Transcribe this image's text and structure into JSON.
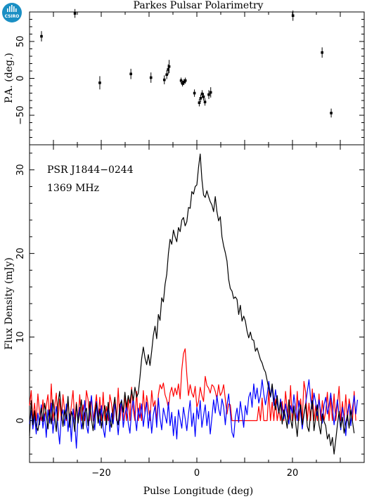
{
  "title": "Parkes Pulsar Polarimetry",
  "logo": {
    "text": "CSIRO",
    "color": "#1a8fc4"
  },
  "annotations": {
    "pulsar": "PSR J1844−0244",
    "frequency": "1369 MHz"
  },
  "colors": {
    "total": "#000000",
    "linear": "#ff0000",
    "circular": "#0000ff"
  },
  "chart_data": [
    {
      "type": "scatter",
      "ylabel": "P.A. (deg.)",
      "xlim": [
        -35,
        35
      ],
      "ylim": [
        -90,
        90
      ],
      "yticks": [
        -50,
        0,
        50
      ],
      "xticks": [
        -20,
        0,
        20
      ],
      "points": [
        {
          "x": -32.5,
          "y": 57,
          "err": 7
        },
        {
          "x": -25.5,
          "y": 88,
          "err": 6
        },
        {
          "x": -20.3,
          "y": -6,
          "err": 9
        },
        {
          "x": -13.8,
          "y": 6,
          "err": 7
        },
        {
          "x": -9.6,
          "y": 1,
          "err": 7
        },
        {
          "x": -6.8,
          "y": -2,
          "err": 6
        },
        {
          "x": -6.3,
          "y": 5,
          "err": 6
        },
        {
          "x": -6.0,
          "y": 12,
          "err": 7
        },
        {
          "x": -5.8,
          "y": 16,
          "err": 9
        },
        {
          "x": -3.3,
          "y": -3,
          "err": 4
        },
        {
          "x": -3.0,
          "y": -7,
          "err": 4
        },
        {
          "x": -2.7,
          "y": -5,
          "err": 4
        },
        {
          "x": -2.4,
          "y": -3,
          "err": 4
        },
        {
          "x": -0.5,
          "y": -20,
          "err": 5
        },
        {
          "x": 0.5,
          "y": -33,
          "err": 5
        },
        {
          "x": 0.8,
          "y": -27,
          "err": 5
        },
        {
          "x": 1.1,
          "y": -21,
          "err": 5
        },
        {
          "x": 1.4,
          "y": -25,
          "err": 5
        },
        {
          "x": 1.7,
          "y": -32,
          "err": 5
        },
        {
          "x": 2.5,
          "y": -22,
          "err": 6
        },
        {
          "x": 2.9,
          "y": -19,
          "err": 7
        },
        {
          "x": 20.1,
          "y": 85,
          "err": 7
        },
        {
          "x": 26.2,
          "y": 35,
          "err": 7
        },
        {
          "x": 28.1,
          "y": -47,
          "err": 6
        }
      ]
    },
    {
      "type": "line",
      "xlabel": "Pulse Longitude (deg)",
      "ylabel": "Flux Density (mJy)",
      "xlim": [
        -35,
        35
      ],
      "ylim": [
        -5,
        33
      ],
      "yticks": [
        0,
        10,
        20,
        30
      ],
      "xticks": [
        -20,
        0,
        20
      ],
      "x_start": -35,
      "x_step": 0.35,
      "series": [
        {
          "color": "#000000",
          "values": [
            -1.8,
            2.4,
            -0.5,
            1.2,
            -0.6,
            -1.2,
            0.1,
            1.5,
            -0.1,
            2.1,
            0.8,
            -1.0,
            1.3,
            -0.4,
            2.5,
            0.6,
            -1.3,
            2.0,
            3.5,
            1.1,
            -0.7,
            1.3,
            0.2,
            2.9,
            -0.8,
            1.1,
            0.4,
            -1.3,
            2.0,
            -0.3,
            1.0,
            2.5,
            -1.0,
            0.9,
            1.5,
            -0.6,
            2.3,
            0.2,
            -1.2,
            0.8,
            2.1,
            -0.3,
            1.4,
            -0.9,
            0.7,
            1.8,
            -0.5,
            2.2,
            0.1,
            -0.8,
            1.5,
            2.8,
            0.4,
            -0.5,
            1.9,
            2.4,
            1.0,
            3.4,
            1.6,
            3.0,
            2.1,
            3.7,
            2.4,
            4.0,
            2.8,
            3.3,
            5.2,
            7.4,
            8.8,
            7.5,
            6.7,
            7.9,
            6.6,
            8.3,
            10.2,
            11.3,
            9.8,
            12.7,
            12.0,
            14.7,
            14.2,
            16.3,
            17.5,
            20.0,
            21.7,
            21.1,
            22.8,
            22.0,
            21.4,
            23.1,
            22.6,
            24.0,
            24.3,
            23.3,
            23.8,
            25.5,
            25.4,
            27.4,
            27.1,
            28.0,
            28.2,
            30.3,
            31.9,
            28.9,
            27.0,
            26.7,
            27.5,
            26.8,
            26.2,
            25.8,
            25.0,
            26.8,
            25.0,
            23.9,
            24.4,
            22.0,
            20.9,
            20.1,
            19.1,
            16.9,
            15.8,
            15.5,
            14.6,
            14.8,
            14.5,
            12.7,
            13.8,
            11.9,
            12.5,
            11.9,
            10.7,
            9.9,
            10.6,
            9.7,
            9.6,
            8.3,
            8.7,
            8.0,
            7.3,
            6.9,
            6.2,
            5.8,
            4.8,
            3.8,
            2.9,
            4.4,
            2.5,
            1.3,
            3.0,
            0.9,
            2.2,
            -0.4,
            1.3,
            0.4,
            -0.9,
            2.5,
            0.2,
            -0.9,
            1.7,
            -0.2,
            -1.9,
            0.8,
            1.9,
            -0.5,
            0.8,
            2.0,
            -0.7,
            -1.3,
            1.0,
            2.4,
            -1.2,
            0.4,
            1.9,
            -0.5,
            -1.6,
            0.8,
            -0.1,
            -0.6,
            -2.2,
            -1.6,
            -3.0,
            -2.0,
            -4.0,
            -2.3,
            -0.5,
            1.1,
            -0.8,
            0.4,
            -1.5,
            -0.2,
            0.7,
            -0.9,
            1.3,
            -0.1,
            -1.5
          ]
        },
        {
          "color": "#ff0000",
          "values": [
            1.8,
            3.6,
            0.0,
            2.1,
            0.0,
            3.2,
            0.9,
            0.0,
            2.5,
            0.0,
            1.8,
            3.1,
            0.0,
            4.4,
            0.0,
            1.7,
            3.3,
            0.0,
            2.6,
            0.0,
            3.1,
            1.2,
            0.0,
            2.5,
            0.0,
            1.8,
            3.6,
            0.0,
            2.2,
            0.0,
            3.1,
            0.0,
            1.9,
            0.0,
            3.6,
            2.5,
            0.0,
            2.9,
            0.0,
            1.4,
            3.1,
            0.0,
            2.8,
            0.0,
            3.4,
            0.0,
            1.7,
            0.0,
            3.1,
            2.0,
            0.0,
            2.6,
            0.0,
            3.9,
            0.0,
            2.0,
            0.0,
            3.3,
            0.0,
            2.6,
            0.0,
            4.0,
            1.3,
            0.0,
            3.5,
            0.0,
            2.1,
            0.0,
            3.6,
            0.8,
            3.0,
            1.6,
            0.0,
            3.6,
            1.7,
            2.4,
            0.0,
            3.1,
            4.3,
            3.8,
            4.5,
            3.1,
            2.5,
            1.5,
            3.3,
            4.0,
            2.9,
            3.9,
            3.1,
            4.4,
            2.6,
            6.1,
            8.0,
            8.6,
            5.5,
            3.0,
            4.3,
            3.3,
            2.8,
            4.1,
            1.6,
            2.3,
            4.0,
            3.0,
            2.3,
            5.3,
            4.2,
            3.9,
            3.3,
            4.3,
            4.1,
            3.5,
            2.6,
            4.3,
            3.0,
            3.4,
            4.3,
            2.6,
            0.8,
            2.0,
            1.9,
            0.0,
            0.0,
            0.0,
            0.0,
            0.0,
            0.0,
            0.0,
            0.0,
            0.0,
            0.0,
            0.0,
            0.0,
            0.0,
            0.0,
            0.0,
            0.0,
            1.7,
            0.0,
            2.7,
            0.0,
            0.0,
            0.0,
            3.6,
            0.0,
            2.2,
            0.0,
            2.6,
            0.0,
            1.3,
            0.0,
            2.3,
            0.0,
            3.5,
            1.4,
            0.0,
            4.2,
            0.0,
            1.8,
            0.0,
            3.5,
            0.0,
            2.6,
            0.0,
            4.7,
            3.4,
            0.0,
            2.1,
            0.0,
            3.8,
            0.0,
            1.8,
            0.0,
            3.2,
            0.0,
            2.4,
            0.0,
            1.1,
            3.4,
            0.0,
            2.7,
            0.0,
            3.2,
            0.0,
            1.8,
            4.1,
            0.0,
            2.3,
            0.0,
            3.1,
            0.0,
            2.6,
            1.4,
            0.0,
            3.5,
            0.0
          ]
        },
        {
          "color": "#0000ff",
          "values": [
            -0.4,
            1.2,
            -1.0,
            0.6,
            -1.6,
            0.9,
            -0.5,
            1.9,
            -0.9,
            0.8,
            -2.0,
            1.3,
            -0.3,
            2.1,
            -1.5,
            0.4,
            1.7,
            -0.8,
            -2.8,
            0.5,
            1.3,
            -0.6,
            2.0,
            -1.3,
            0.8,
            -2.5,
            1.4,
            -0.2,
            -3.3,
            0.6,
            1.6,
            -1.0,
            0.2,
            2.4,
            -0.5,
            -1.5,
            1.2,
            3.0,
            0.4,
            -1.1,
            2.3,
            1.0,
            -0.6,
            1.8,
            -0.9,
            -2.0,
            0.7,
            1.5,
            -1.3,
            0.9,
            -0.4,
            2.0,
            0.5,
            -1.7,
            1.0,
            2.5,
            -0.8,
            0.7,
            1.8,
            -0.3,
            -1.5,
            1.2,
            2.7,
            0.6,
            -1.2,
            1.5,
            0.3,
            2.0,
            -0.7,
            0.9,
            2.2,
            -0.9,
            1.2,
            -1.5,
            0.7,
            1.8,
            -0.8,
            2.7,
            0.3,
            -1.1,
            1.5,
            0.6,
            -0.3,
            2.2,
            -0.6,
            1.0,
            -1.8,
            0.5,
            -2.2,
            1.3,
            0.2,
            -0.9,
            1.6,
            0.3,
            -1.2,
            0.8,
            2.4,
            -0.7,
            0.9,
            -1.9,
            1.6,
            0.2,
            2.4,
            -0.8,
            0.6,
            1.9,
            -0.6,
            1.1,
            -1.6,
            0.4,
            2.5,
            0.9,
            3.0,
            1.4,
            0.6,
            2.6,
            1.7,
            -0.5,
            1.8,
            3.2,
            1.0,
            -1.4,
            -2.0,
            0.4,
            1.5,
            -0.2,
            2.3,
            0.8,
            -0.8,
            1.8,
            0.7,
            2.8,
            3.4,
            1.6,
            4.4,
            2.6,
            3.9,
            2.1,
            3.0,
            4.9,
            3.2,
            1.9,
            3.1,
            4.7,
            2.8,
            4.0,
            1.8,
            3.7,
            2.1,
            0.9,
            2.6,
            1.4,
            0.2,
            2.0,
            0.6,
            -0.4,
            1.8,
            0.9,
            3.1,
            1.5,
            0.0,
            2.4,
            1.0,
            -1.0,
            0.7,
            2.0,
            3.5,
            4.9,
            2.6,
            1.4,
            3.3,
            2.2,
            0.6,
            2.5,
            1.1,
            -0.3,
            1.9,
            2.8,
            0.8,
            1.8,
            3.3,
            1.6,
            -0.5,
            1.0,
            2.5,
            0.7,
            -1.1,
            1.6,
            0.4,
            -1.8,
            0.9,
            2.0,
            -0.6,
            1.5,
            3.0,
            0.8,
            2.5
          ]
        }
      ]
    }
  ]
}
